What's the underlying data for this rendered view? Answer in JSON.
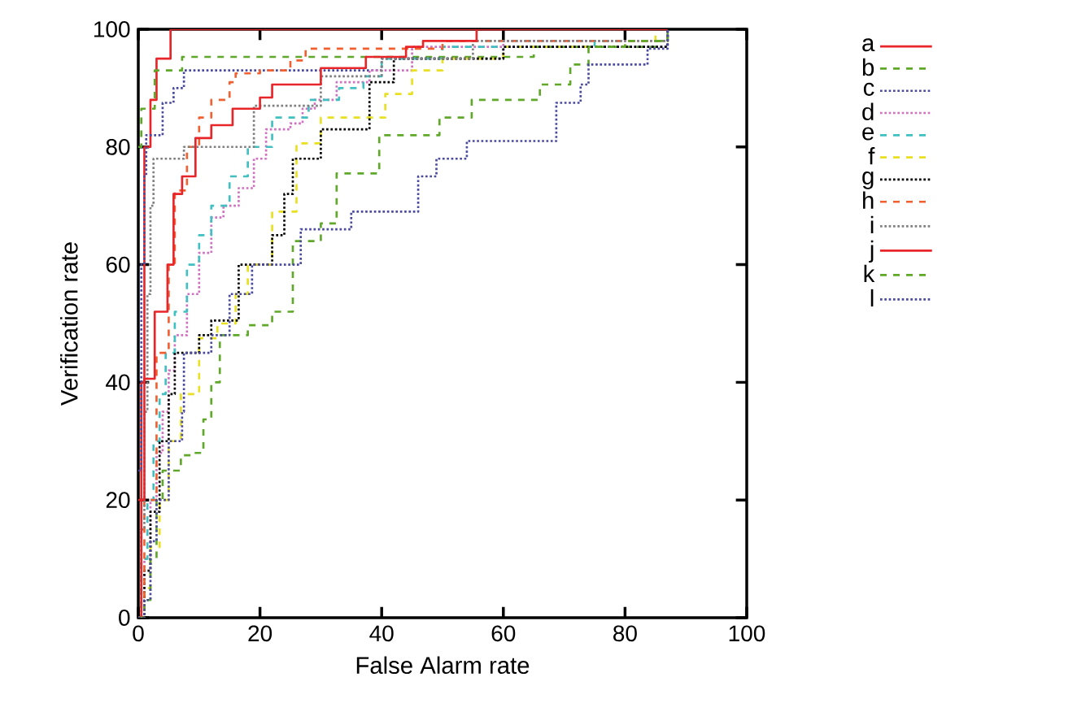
{
  "chart_data": {
    "type": "step",
    "xlabel": "False Alarm rate",
    "ylabel": "Verification rate",
    "xlim": [
      0,
      100
    ],
    "ylim": [
      0,
      100
    ],
    "xticks": [
      0,
      20,
      40,
      60,
      80,
      100
    ],
    "yticks": [
      0,
      20,
      40,
      60,
      80,
      100
    ],
    "legend": "right",
    "grid": false,
    "marker": "none",
    "series": [
      {
        "name": "a",
        "color": "#e8262a",
        "line_style": "solid",
        "x": [
          0,
          0.5,
          1,
          2,
          3,
          5.3,
          60
        ],
        "values": [
          20,
          40,
          80,
          88,
          95,
          100,
          100
        ]
      },
      {
        "name": "b",
        "color": "#5fa82a",
        "line_style": "dashed",
        "x": [
          0,
          0.5,
          2.7,
          7.2,
          57,
          65,
          85,
          87
        ],
        "values": [
          80,
          86.5,
          93,
          95.3,
          95.3,
          97,
          98,
          100
        ]
      },
      {
        "name": "c",
        "color": "#4a4aa0",
        "line_style": "dotted",
        "x": [
          0,
          0.5,
          1,
          1.3,
          4,
          5.8,
          7.5,
          40,
          60,
          87
        ],
        "values": [
          25,
          60,
          75,
          82,
          87.5,
          90,
          93,
          95,
          97,
          100
        ]
      },
      {
        "name": "d",
        "color": "#d070c0",
        "line_style": "dotted",
        "x": [
          0,
          1,
          2,
          3,
          4,
          5,
          6,
          8,
          10,
          12,
          14,
          16.5,
          19,
          21,
          25,
          27,
          29,
          32.6,
          38,
          45,
          60,
          87
        ],
        "values": [
          0,
          10,
          20,
          28,
          35,
          42,
          48,
          55,
          62,
          68,
          70,
          73,
          78,
          83,
          84,
          86.5,
          88,
          91,
          93,
          97,
          98,
          100
        ]
      },
      {
        "name": "e",
        "color": "#40c0c0",
        "line_style": "dashed",
        "x": [
          0,
          0.5,
          1.5,
          2.5,
          3.5,
          4.5,
          6,
          8,
          10,
          12,
          15,
          18,
          22,
          28,
          33,
          37,
          40,
          50,
          75,
          87
        ],
        "values": [
          0,
          10,
          20,
          30,
          38,
          45,
          52,
          60,
          65,
          70,
          75,
          80,
          85,
          88,
          90,
          92,
          95,
          97,
          98,
          100
        ]
      },
      {
        "name": "f",
        "color": "#e8e020",
        "line_style": "dashed",
        "x": [
          0,
          1,
          2,
          3.5,
          5,
          7,
          10,
          13,
          16,
          18,
          22,
          26,
          30,
          34,
          40.6,
          45,
          50,
          60,
          80,
          85
        ],
        "values": [
          0,
          5,
          12,
          20,
          30,
          38,
          47.5,
          50,
          55,
          60,
          69,
          80.6,
          85,
          85,
          89,
          93,
          95,
          97,
          98,
          100
        ]
      },
      {
        "name": "g",
        "color": "#000000",
        "line_style": "dotted",
        "x": [
          0,
          1,
          2,
          3.5,
          5,
          6,
          10,
          12,
          16.5,
          22,
          24,
          25.4,
          30,
          38,
          42,
          60,
          87
        ],
        "values": [
          0,
          8,
          18,
          30,
          38,
          45,
          48,
          50.5,
          60,
          65,
          72,
          78,
          83,
          91,
          95,
          97,
          100
        ]
      },
      {
        "name": "h",
        "color": "#f06030",
        "line_style": "dashed",
        "x": [
          0,
          1,
          3,
          5,
          6,
          8,
          10,
          12,
          15,
          16,
          20,
          25,
          27.5,
          50,
          87
        ],
        "values": [
          0,
          20,
          45,
          60,
          72.6,
          80,
          85,
          88,
          91,
          92.5,
          93,
          94.7,
          96.7,
          98,
          100
        ]
      },
      {
        "name": "i",
        "color": "#808080",
        "line_style": "dotted",
        "x": [
          0,
          0.5,
          1,
          1.5,
          2,
          2.5,
          7.5,
          19,
          27,
          30,
          40,
          55,
          87
        ],
        "values": [
          0,
          15,
          35,
          55,
          70,
          78,
          80,
          87,
          87,
          92,
          95,
          98,
          100
        ]
      },
      {
        "name": "j",
        "color": "#e8262a",
        "line_style": "solid",
        "x": [
          0,
          0.5,
          1,
          2.7,
          4,
          4.8,
          5.8,
          7.2,
          9.4,
          12,
          15.5,
          20,
          22,
          30,
          37.4,
          44,
          46.8,
          55.6,
          87
        ],
        "values": [
          0,
          20,
          40.6,
          52,
          52,
          60,
          72,
          75,
          81.5,
          83.7,
          86.5,
          88.4,
          90.6,
          93.4,
          95.3,
          97,
          98,
          100,
          100
        ]
      },
      {
        "name": "k",
        "color": "#5fa82a",
        "line_style": "dashed",
        "x": [
          0,
          1,
          2,
          3,
          4,
          7,
          9,
          10.7,
          12,
          13.4,
          18,
          22,
          25.4,
          30,
          32.6,
          39.6,
          49.5,
          54.8,
          66,
          71,
          74,
          80,
          87
        ],
        "values": [
          0,
          3,
          10,
          20,
          25,
          27.6,
          28,
          33.7,
          40,
          48,
          49.7,
          52,
          64,
          67,
          75.5,
          82,
          85,
          88,
          90.6,
          94,
          97,
          98,
          100
        ]
      },
      {
        "name": "l",
        "color": "#4a4aa0",
        "line_style": "dotted",
        "x": [
          0,
          1,
          2,
          3,
          5,
          7.2,
          7.5,
          12,
          15,
          18.7,
          26.7,
          35,
          46,
          49,
          54,
          68.7,
          72.7,
          74,
          83.7,
          87
        ],
        "values": [
          0,
          3,
          13,
          20,
          30,
          35,
          45,
          48,
          55,
          60,
          66,
          69,
          75,
          78,
          81,
          87.5,
          90.6,
          94,
          96.7,
          100
        ]
      }
    ]
  }
}
